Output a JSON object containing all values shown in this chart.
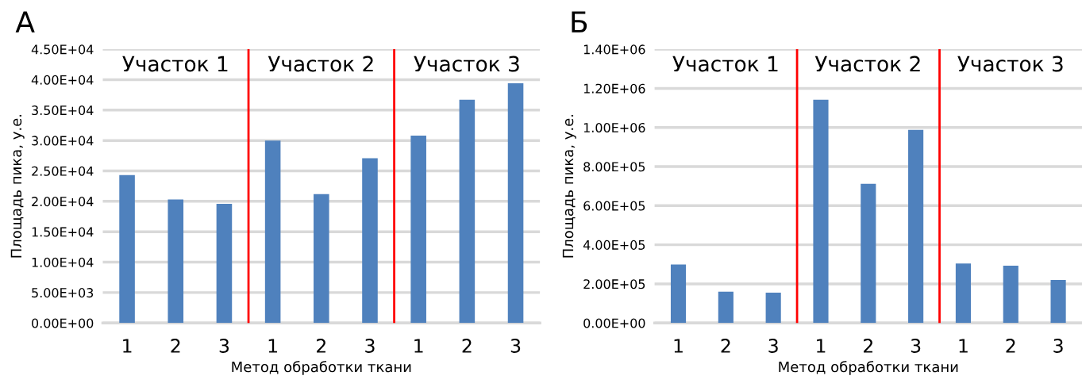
{
  "chart_data": [
    {
      "type": "bar",
      "title": "А",
      "xlabel": "Метод обработки ткани",
      "ylabel": "Площадь пика, у.е.",
      "categories": [
        "1",
        "2",
        "3",
        "1",
        "2",
        "3",
        "1",
        "2",
        "3"
      ],
      "values": [
        24300,
        20300,
        19600,
        30000,
        21200,
        27100,
        30800,
        36700,
        39400
      ],
      "color": "#4f81bd",
      "ylim": [
        0,
        45000
      ],
      "yticks": [
        {
          "value": 0,
          "label": "0.00E+00"
        },
        {
          "value": 5000,
          "label": "5.00E+03"
        },
        {
          "value": 10000,
          "label": "1.00E+04"
        },
        {
          "value": 15000,
          "label": "1.50E+04"
        },
        {
          "value": 20000,
          "label": "2.00E+04"
        },
        {
          "value": 25000,
          "label": "2.50E+04"
        },
        {
          "value": 30000,
          "label": "3.00E+04"
        },
        {
          "value": 35000,
          "label": "3.50E+04"
        },
        {
          "value": 40000,
          "label": "4.00E+04"
        },
        {
          "value": 45000,
          "label": "4.50E+04"
        }
      ],
      "grid": "y",
      "annotations": [
        "Участок 1",
        "Участок 2",
        "Участок 3"
      ]
    },
    {
      "type": "bar",
      "title": "Б",
      "xlabel": "Метод обработки ткани",
      "ylabel": "Площадь пика, у.е.",
      "categories": [
        "1",
        "2",
        "3",
        "1",
        "2",
        "3",
        "1",
        "2",
        "3"
      ],
      "values": [
        299000,
        160000,
        155000,
        1142000,
        712000,
        988000,
        304000,
        293000,
        220000
      ],
      "color": "#4f81bd",
      "ylim": [
        0,
        1400000
      ],
      "yticks": [
        {
          "value": 0,
          "label": "0.00E+00"
        },
        {
          "value": 200000,
          "label": "2.00E+05"
        },
        {
          "value": 400000,
          "label": "4.00E+05"
        },
        {
          "value": 600000,
          "label": "6.00E+05"
        },
        {
          "value": 800000,
          "label": "8.00E+05"
        },
        {
          "value": 1000000,
          "label": "1.00E+06"
        },
        {
          "value": 1200000,
          "label": "1.20E+06"
        },
        {
          "value": 1400000,
          "label": "1.40E+06"
        }
      ],
      "grid": "y",
      "annotations": [
        "Участок 1",
        "Участок 2",
        "Участок 3"
      ]
    }
  ]
}
